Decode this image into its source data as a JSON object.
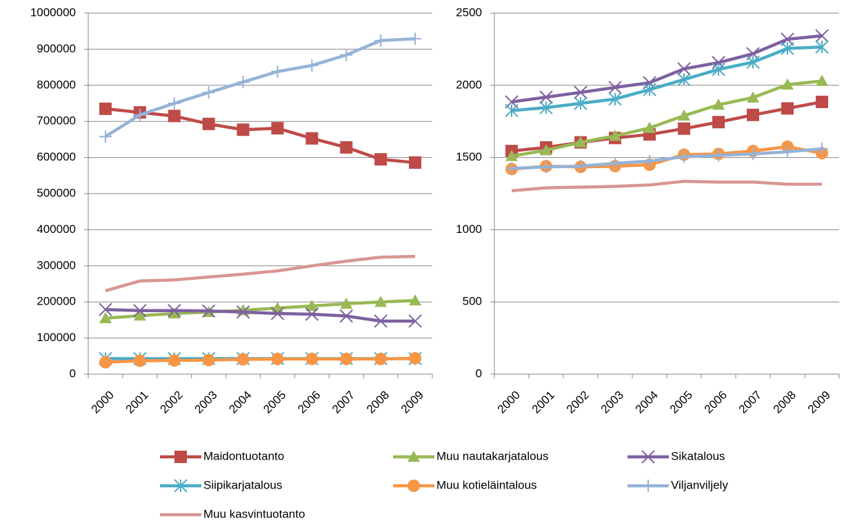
{
  "chart_data": [
    {
      "type": "line",
      "categories": [
        "2000",
        "2001",
        "2002",
        "2003",
        "2004",
        "2005",
        "2006",
        "2007",
        "2008",
        "2009"
      ],
      "ylim": [
        0,
        1000000
      ],
      "yticks": [
        0,
        100000,
        200000,
        300000,
        400000,
        500000,
        600000,
        700000,
        800000,
        900000,
        1000000
      ],
      "grid": true,
      "series": [
        {
          "name": "Maidontuotanto",
          "color": "#be4b48",
          "marker": "square",
          "values": [
            735000,
            725000,
            715000,
            693000,
            677000,
            681000,
            653000,
            628000,
            595000,
            586000
          ]
        },
        {
          "name": "Muu nautakarjatalous",
          "color": "#98b954",
          "marker": "triangle",
          "values": [
            155000,
            162000,
            168000,
            172000,
            177000,
            183000,
            189000,
            195000,
            200000,
            204000
          ]
        },
        {
          "name": "Sikatalous",
          "color": "#7d60a0",
          "marker": "x",
          "values": [
            179000,
            176000,
            176000,
            175000,
            172000,
            168000,
            166000,
            161000,
            147000,
            147000
          ]
        },
        {
          "name": "Siipikarjatalous",
          "color": "#4bacc6",
          "marker": "asterisk",
          "values": [
            43000,
            43000,
            43000,
            43000,
            43000,
            43000,
            43000,
            43000,
            43000,
            43000
          ]
        },
        {
          "name": "Muu kotieläintalous",
          "color": "#f79646",
          "marker": "circle",
          "values": [
            33000,
            37000,
            38000,
            39000,
            41000,
            42000,
            42000,
            42000,
            42000,
            44000
          ]
        },
        {
          "name": "Viljanviljely",
          "color": "#95b3d7",
          "marker": "plus",
          "values": [
            658000,
            718000,
            750000,
            780000,
            809000,
            838000,
            855000,
            884000,
            924000,
            929000
          ]
        },
        {
          "name": "Muu kasvintuotanto",
          "color": "#d99694",
          "marker": "none",
          "values": [
            231000,
            258000,
            261000,
            269000,
            277000,
            286000,
            300000,
            313000,
            324000,
            326000
          ]
        }
      ]
    },
    {
      "type": "line",
      "categories": [
        "2000",
        "2001",
        "2002",
        "2003",
        "2004",
        "2005",
        "2006",
        "2007",
        "2008",
        "2009"
      ],
      "ylim": [
        0,
        2500
      ],
      "yticks": [
        0,
        500,
        1000,
        1500,
        2000,
        2500
      ],
      "grid": true,
      "series": [
        {
          "color": "#be4b48",
          "marker": "square",
          "values": [
            1545,
            1570,
            1605,
            1635,
            1660,
            1700,
            1745,
            1795,
            1840,
            1885
          ]
        },
        {
          "color": "#98b954",
          "marker": "triangle",
          "values": [
            1510,
            1550,
            1605,
            1650,
            1705,
            1790,
            1865,
            1915,
            2005,
            2030
          ]
        },
        {
          "color": "#7d60a0",
          "marker": "x",
          "values": [
            1885,
            1918,
            1951,
            1985,
            2018,
            2114,
            2157,
            2219,
            2319,
            2343
          ]
        },
        {
          "color": "#4bacc6",
          "marker": "asterisk",
          "values": [
            1825,
            1845,
            1875,
            1905,
            1970,
            2040,
            2110,
            2160,
            2255,
            2265
          ]
        },
        {
          "color": "#f79646",
          "marker": "circle",
          "values": [
            1420,
            1440,
            1435,
            1440,
            1450,
            1520,
            1525,
            1545,
            1575,
            1530
          ]
        },
        {
          "color": "#95b3d7",
          "marker": "plus",
          "values": [
            1425,
            1435,
            1440,
            1460,
            1475,
            1505,
            1515,
            1525,
            1540,
            1560
          ]
        },
        {
          "color": "#d99694",
          "marker": "none",
          "values": [
            1270,
            1290,
            1295,
            1300,
            1310,
            1335,
            1330,
            1330,
            1315,
            1315
          ]
        }
      ]
    }
  ]
}
